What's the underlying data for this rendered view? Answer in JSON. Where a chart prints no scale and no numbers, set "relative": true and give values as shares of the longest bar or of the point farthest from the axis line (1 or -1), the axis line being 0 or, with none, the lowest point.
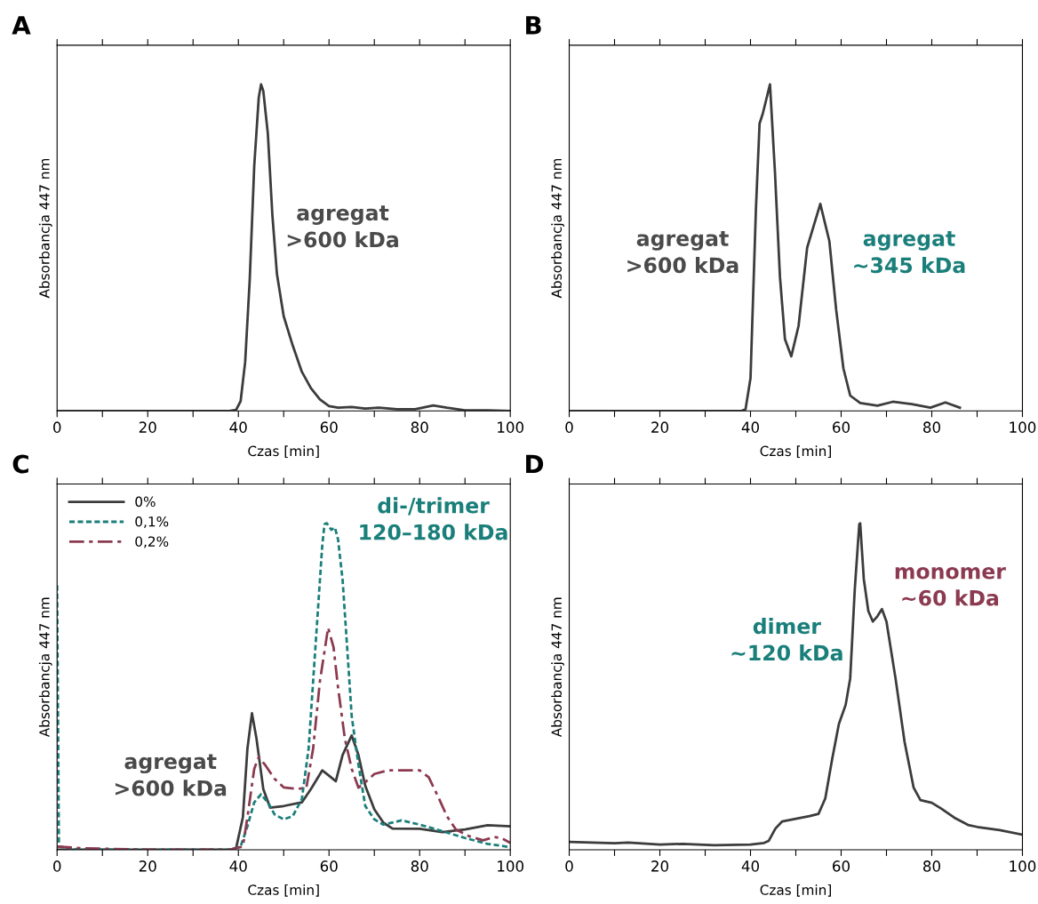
{
  "chart_data": [
    {
      "type": "line",
      "title": "A",
      "xlabel": "Czas [min]",
      "ylabel": "Absorbancja 447 nm",
      "relative": true,
      "xlim": [
        0,
        100
      ],
      "xticks": [
        0,
        {
          "value": 10,
          "label": null
        },
        20,
        {
          "value": 30,
          "label": null
        },
        40,
        {
          "value": 50,
          "label": null
        },
        60,
        {
          "value": 70,
          "label": null
        },
        80,
        {
          "value": 90,
          "label": null
        },
        100
      ],
      "grid": false,
      "legend": false,
      "marker": "none",
      "series": [
        {
          "color": "#3c3c3c",
          "line_style": "solid",
          "x": [
            0,
            10,
            20,
            30,
            38,
            39.5,
            40.5,
            41.5,
            42.5,
            43.5,
            44.5,
            45,
            45.5,
            46.5,
            47.5,
            48.5,
            50,
            52,
            54,
            56,
            58,
            60,
            62,
            65,
            68,
            71,
            75,
            79,
            83,
            86,
            90,
            95,
            100
          ],
          "values": [
            0,
            0,
            0,
            0,
            0,
            0.003,
            0.03,
            0.15,
            0.4,
            0.75,
            0.96,
            1,
            0.98,
            0.85,
            0.6,
            0.42,
            0.29,
            0.2,
            0.12,
            0.07,
            0.035,
            0.015,
            0.01,
            0.012,
            0.007,
            0.01,
            0.005,
            0.005,
            0.017,
            0.01,
            0.002,
            0.002,
            0
          ]
        }
      ],
      "annotations": [
        "agregat\n>600 kDa"
      ]
    },
    {
      "type": "line",
      "title": "B",
      "xlabel": "Czas [min]",
      "ylabel": "Absorbancja 447 nm",
      "relative": true,
      "xlim": [
        0,
        100
      ],
      "xticks": [
        0,
        {
          "value": 10,
          "label": null
        },
        20,
        {
          "value": 30,
          "label": null
        },
        40,
        {
          "value": 50,
          "label": null
        },
        60,
        {
          "value": 70,
          "label": null
        },
        80,
        {
          "value": 90,
          "label": null
        },
        100
      ],
      "grid": false,
      "legend": false,
      "marker": "none",
      "series": [
        {
          "color": "#3c3c3c",
          "line_style": "solid",
          "x": [
            0,
            10,
            20,
            30,
            38,
            38.9,
            40,
            41.2,
            42,
            42.7,
            44.3,
            45.4,
            46.5,
            47.6,
            49,
            50.6,
            52.5,
            55.4,
            57.4,
            58.9,
            60.5,
            62,
            64.2,
            68,
            71.4,
            75.6,
            79.7,
            83,
            86.2
          ],
          "values": [
            0,
            0,
            0,
            0,
            0,
            0.005,
            0.1,
            0.62,
            0.88,
            0.91,
            1,
            0.73,
            0.41,
            0.22,
            0.167,
            0.26,
            0.5,
            0.634,
            0.52,
            0.31,
            0.13,
            0.047,
            0.024,
            0.016,
            0.028,
            0.021,
            0.01,
            0.026,
            0.01
          ]
        }
      ],
      "annotations": [
        "agregat\n>600 kDa",
        "agregat\n~345 kDa"
      ]
    },
    {
      "type": "line",
      "title": "C",
      "xlabel": "Czas [min]",
      "ylabel": "Absorbancja 447 nm",
      "relative": true,
      "xlim": [
        0,
        100
      ],
      "xticks": [
        0,
        {
          "value": 10,
          "label": null
        },
        20,
        {
          "value": 30,
          "label": null
        },
        40,
        {
          "value": 50,
          "label": null
        },
        60,
        {
          "value": 70,
          "label": null
        },
        80,
        {
          "value": 90,
          "label": null
        },
        100
      ],
      "grid": false,
      "legend": "top left",
      "marker": "none",
      "series": [
        {
          "name": "0%",
          "color": "#3c3c3c",
          "line_style": "solid",
          "x": [
            0,
            10,
            20,
            30,
            38,
            39.5,
            41,
            42,
            43,
            44,
            45.5,
            47,
            50,
            54,
            56,
            58.5,
            60,
            61.5,
            63,
            65,
            66.5,
            68,
            70,
            72,
            74,
            80,
            85,
            90,
            95,
            100
          ],
          "values": [
            0,
            0,
            0,
            0,
            0,
            0.005,
            0.1,
            0.31,
            0.418,
            0.34,
            0.186,
            0.129,
            0.134,
            0.145,
            0.186,
            0.243,
            0.227,
            0.21,
            0.29,
            0.35,
            0.29,
            0.196,
            0.124,
            0.083,
            0.065,
            0.064,
            0.054,
            0.062,
            0.075,
            0.072
          ]
        },
        {
          "name": "0,1%",
          "color": "#1a7f7a",
          "line_style": "dashed",
          "x": [
            0,
            0.4,
            5,
            20,
            38,
            40.5,
            42,
            43.5,
            45,
            46.5,
            48,
            50,
            52,
            54,
            55.5,
            57,
            58.5,
            59,
            59.5,
            60.5,
            61.3,
            62,
            63,
            64,
            65,
            66.5,
            68,
            70,
            72,
            76,
            80,
            85,
            90,
            95,
            100
          ],
          "values": [
            0.81,
            0.01,
            0,
            0,
            0,
            0.01,
            0.072,
            0.145,
            0.17,
            0.145,
            0.108,
            0.093,
            0.103,
            0.155,
            0.31,
            0.62,
            0.93,
            0.997,
            1,
            0.98,
            0.987,
            0.95,
            0.826,
            0.62,
            0.41,
            0.26,
            0.134,
            0.093,
            0.077,
            0.09,
            0.077,
            0.057,
            0.036,
            0.018,
            0.008
          ]
        },
        {
          "name": "0,2%",
          "color": "#8b3a50",
          "line_style": "dashdot",
          "x": [
            0,
            5,
            20,
            38,
            41,
            42,
            43.5,
            44.5,
            46,
            48,
            50,
            53,
            55,
            56.5,
            58,
            59.8,
            61,
            62,
            63.5,
            65,
            66.5,
            68,
            70,
            73,
            80,
            82,
            84,
            86,
            88,
            91,
            94,
            96.5,
            98,
            100
          ],
          "values": [
            0.01,
            0.005,
            0,
            0,
            0.01,
            0.1,
            0.248,
            0.284,
            0.258,
            0.217,
            0.191,
            0.186,
            0.19,
            0.31,
            0.517,
            0.68,
            0.62,
            0.496,
            0.34,
            0.248,
            0.19,
            0.207,
            0.232,
            0.243,
            0.243,
            0.222,
            0.165,
            0.103,
            0.062,
            0.041,
            0.029,
            0.039,
            0.036,
            0.021
          ]
        }
      ],
      "annotations": [
        "di-/trimer\n120–180 kDa",
        "agregat\n>600 kDa"
      ]
    },
    {
      "type": "line",
      "title": "D",
      "xlabel": "Czas [min]",
      "ylabel": "Absorbancja 447 nm",
      "relative": true,
      "xlim": [
        0,
        100
      ],
      "xticks": [
        0,
        {
          "value": 10,
          "label": null
        },
        20,
        {
          "value": 30,
          "label": null
        },
        40,
        {
          "value": 50,
          "label": null
        },
        60,
        {
          "value": 70,
          "label": null
        },
        80,
        {
          "value": 90,
          "label": null
        },
        100
      ],
      "grid": false,
      "legend": false,
      "marker": "none",
      "series": [
        {
          "color": "#3c3c3c",
          "line_style": "solid",
          "x": [
            0,
            10,
            13,
            20,
            25,
            32,
            40,
            43,
            44,
            45.5,
            47,
            50,
            53,
            55,
            56.5,
            58,
            59.5,
            61,
            62,
            63,
            64,
            64.2,
            65,
            66,
            67,
            68,
            69,
            70,
            72,
            74,
            76,
            77.5,
            80,
            82,
            85,
            88,
            90,
            95,
            100
          ],
          "values": [
            0.024,
            0.02,
            0.022,
            0.016,
            0.018,
            0.014,
            0.016,
            0.021,
            0.027,
            0.065,
            0.087,
            0.095,
            0.103,
            0.11,
            0.157,
            0.276,
            0.385,
            0.444,
            0.525,
            0.796,
            0.997,
            1,
            0.829,
            0.731,
            0.699,
            0.715,
            0.737,
            0.699,
            0.525,
            0.33,
            0.19,
            0.152,
            0.144,
            0.127,
            0.098,
            0.076,
            0.07,
            0.06,
            0.046
          ]
        }
      ],
      "annotations": [
        "dimer\n~120 kDa",
        "monomer\n~60 kDa"
      ]
    }
  ]
}
